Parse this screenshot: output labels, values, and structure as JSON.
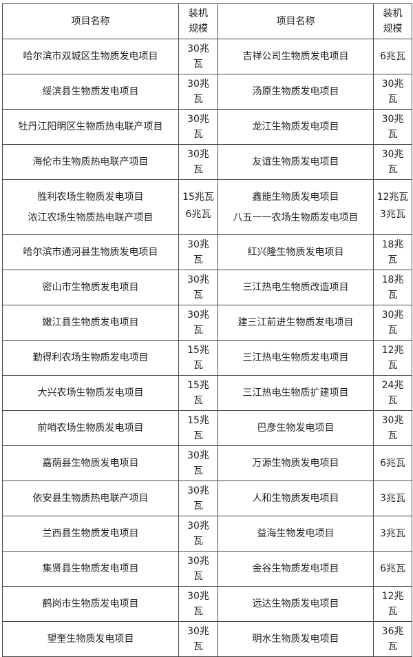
{
  "header": {
    "name_left": "项目名称",
    "capacity_left": "装机规模",
    "name_right": "项目名称",
    "capacity_right": "装机规模"
  },
  "rows": [
    {
      "left_name": "哈尔滨市双城区生物质发电项目",
      "left_cap": "30兆瓦",
      "right_name": "吉祥公司生物质发电项目",
      "right_cap": "6兆瓦"
    },
    {
      "left_name": "绥滨县生物质发电项目",
      "left_cap": "30兆瓦",
      "right_name": "汤原生物质发电项目",
      "right_cap": "30兆瓦"
    },
    {
      "left_name": "牡丹江阳明区生物质热电联产项目",
      "left_cap": "30兆瓦",
      "right_name": "龙江生物质发电项目",
      "right_cap": "30兆瓦"
    },
    {
      "left_name": "海伦市生物质热电联产项目",
      "left_cap": "30兆瓦",
      "right_name": "友谊生物质发电项目",
      "right_cap": "30兆瓦"
    }
  ],
  "double_row": {
    "left_name_1": "胜利农场生物质发电项目",
    "left_cap_1": "15兆瓦",
    "left_name_2": "浓江农场生物质热电联产项目",
    "left_cap_2": "6兆瓦",
    "right_name_1": "鑫能生物质发电项目",
    "right_cap_1": "12兆瓦",
    "right_name_2": "八五一一农场生物质发电项目",
    "right_cap_2": "3兆瓦"
  },
  "rows2": [
    {
      "left_name": "哈尔滨市通河县生物质发电项目",
      "left_cap": "30兆瓦",
      "right_name": "红兴隆生物质发电项目",
      "right_cap": "18兆瓦"
    },
    {
      "left_name": "密山市生物质发电项目",
      "left_cap": "30兆瓦",
      "right_name": "三江热电生物质改造项目",
      "right_cap": "18兆瓦"
    },
    {
      "left_name": "嫩江县生物质发电项目",
      "left_cap": "30兆瓦",
      "right_name": "建三江前进生物质发电项目",
      "right_cap": "30兆瓦"
    },
    {
      "left_name": "勤得利农场生物质发电项目",
      "left_cap": "15兆瓦",
      "right_name": "三江热电生物质发电项目",
      "right_cap": "12兆瓦"
    },
    {
      "left_name": "大兴农场生物质发电项目",
      "left_cap": "15兆瓦",
      "right_name": "三江热电生物质扩建项目",
      "right_cap": "24兆瓦"
    },
    {
      "left_name": "前哨农场生物质发电项目",
      "left_cap": "15兆瓦",
      "right_name": "巴彦生物发电项目",
      "right_cap": "30兆瓦"
    },
    {
      "left_name": "嘉荫县生物质发电项目",
      "left_cap": "30兆瓦",
      "right_name": "万源生物质发电项目",
      "right_cap": "6兆瓦"
    },
    {
      "left_name": "依安县生物质热电联产项目",
      "left_cap": "30兆瓦",
      "right_name": "人和生物质发电项目",
      "right_cap": "3兆瓦"
    },
    {
      "left_name": "兰西县生物质发电项目",
      "left_cap": "30兆瓦",
      "right_name": "益海生物发电项目",
      "right_cap": "3兆瓦"
    },
    {
      "left_name": "集贤县生物质发电项目",
      "left_cap": "30兆瓦",
      "right_name": "金谷生物质发电项目",
      "right_cap": "6兆瓦"
    },
    {
      "left_name": "鹤岗市生物质发电项目",
      "left_cap": "30兆瓦",
      "right_name": "远达生物质发电项目",
      "right_cap": "12兆瓦"
    },
    {
      "left_name": "望奎生物质发电项目",
      "left_cap": "30兆瓦",
      "right_name": "明水生物质发电项目",
      "right_cap": "36兆瓦"
    }
  ]
}
